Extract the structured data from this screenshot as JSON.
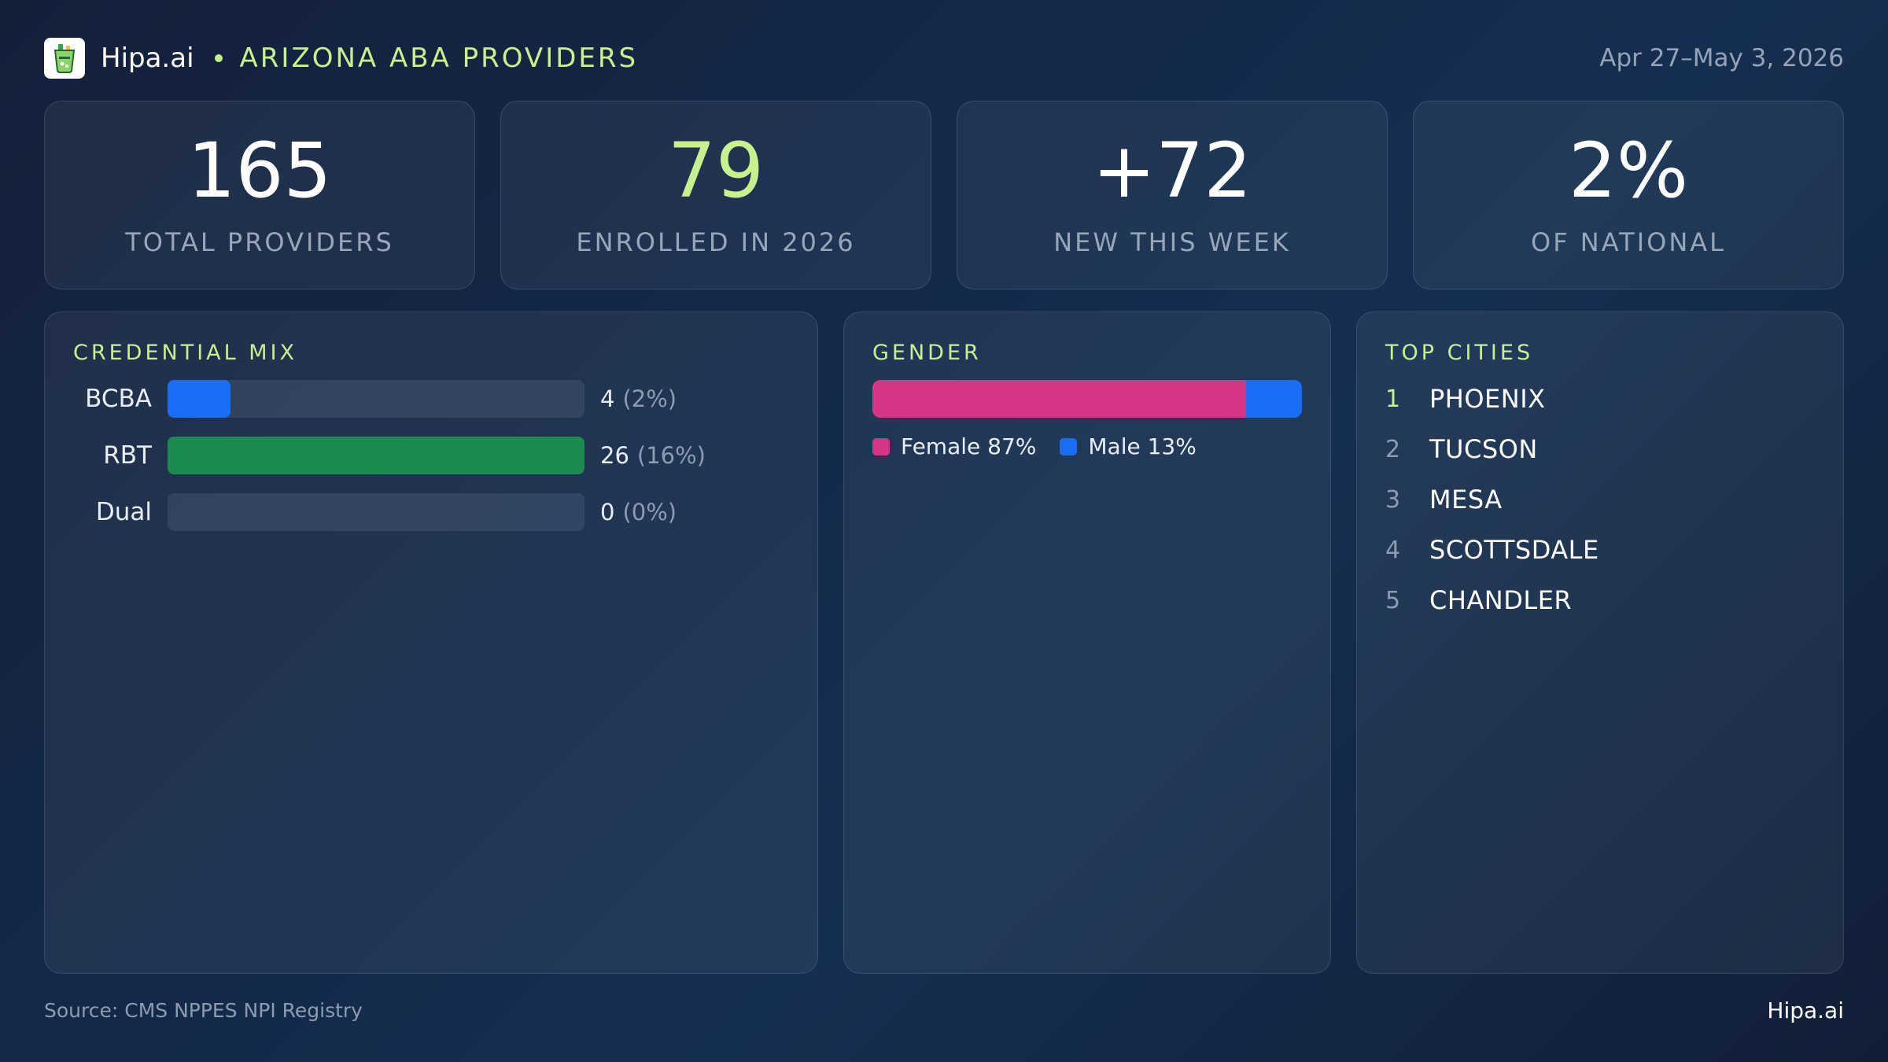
{
  "header": {
    "brand": "Hipa.ai",
    "title": "ARIZONA ABA PROVIDERS",
    "date_range": "Apr 27–May 3, 2026",
    "logo_icon": "cocktail-glass-icon"
  },
  "kpis": [
    {
      "value": "165",
      "label": "TOTAL PROVIDERS",
      "accent": false
    },
    {
      "value": "79",
      "label": "ENROLLED IN 2026",
      "accent": true
    },
    {
      "value": "+72",
      "label": "NEW THIS WEEK",
      "accent": false
    },
    {
      "value": "2%",
      "label": "OF NATIONAL",
      "accent": false
    }
  ],
  "credential_mix": {
    "title": "CREDENTIAL MIX",
    "rows": [
      {
        "label": "BCBA",
        "count": "4",
        "pct": "(2%)",
        "fill": 0.15,
        "color": "#1a6ef5"
      },
      {
        "label": "RBT",
        "count": "26",
        "pct": "(16%)",
        "fill": 1.0,
        "color": "#1d8a52"
      },
      {
        "label": "Dual",
        "count": "0",
        "pct": "(0%)",
        "fill": 0.0,
        "color": "#1a6ef5"
      }
    ]
  },
  "gender": {
    "title": "GENDER",
    "segments": [
      {
        "label": "Female 87%",
        "share": 0.87,
        "color": "#d63484"
      },
      {
        "label": "Male 13%",
        "share": 0.13,
        "color": "#1a6ef5"
      }
    ]
  },
  "top_cities": {
    "title": "TOP CITIES",
    "items": [
      {
        "rank": "1",
        "name": "PHOENIX"
      },
      {
        "rank": "2",
        "name": "TUCSON"
      },
      {
        "rank": "3",
        "name": "MESA"
      },
      {
        "rank": "4",
        "name": "SCOTTSDALE"
      },
      {
        "rank": "5",
        "name": "CHANDLER"
      }
    ]
  },
  "footer": {
    "source": "Source: CMS NPPES NPI Registry",
    "brand": "Hipa.ai"
  },
  "colors": {
    "accent": "#c8f08c",
    "female": "#d63484",
    "male": "#1a6ef5",
    "rbt": "#1d8a52"
  }
}
